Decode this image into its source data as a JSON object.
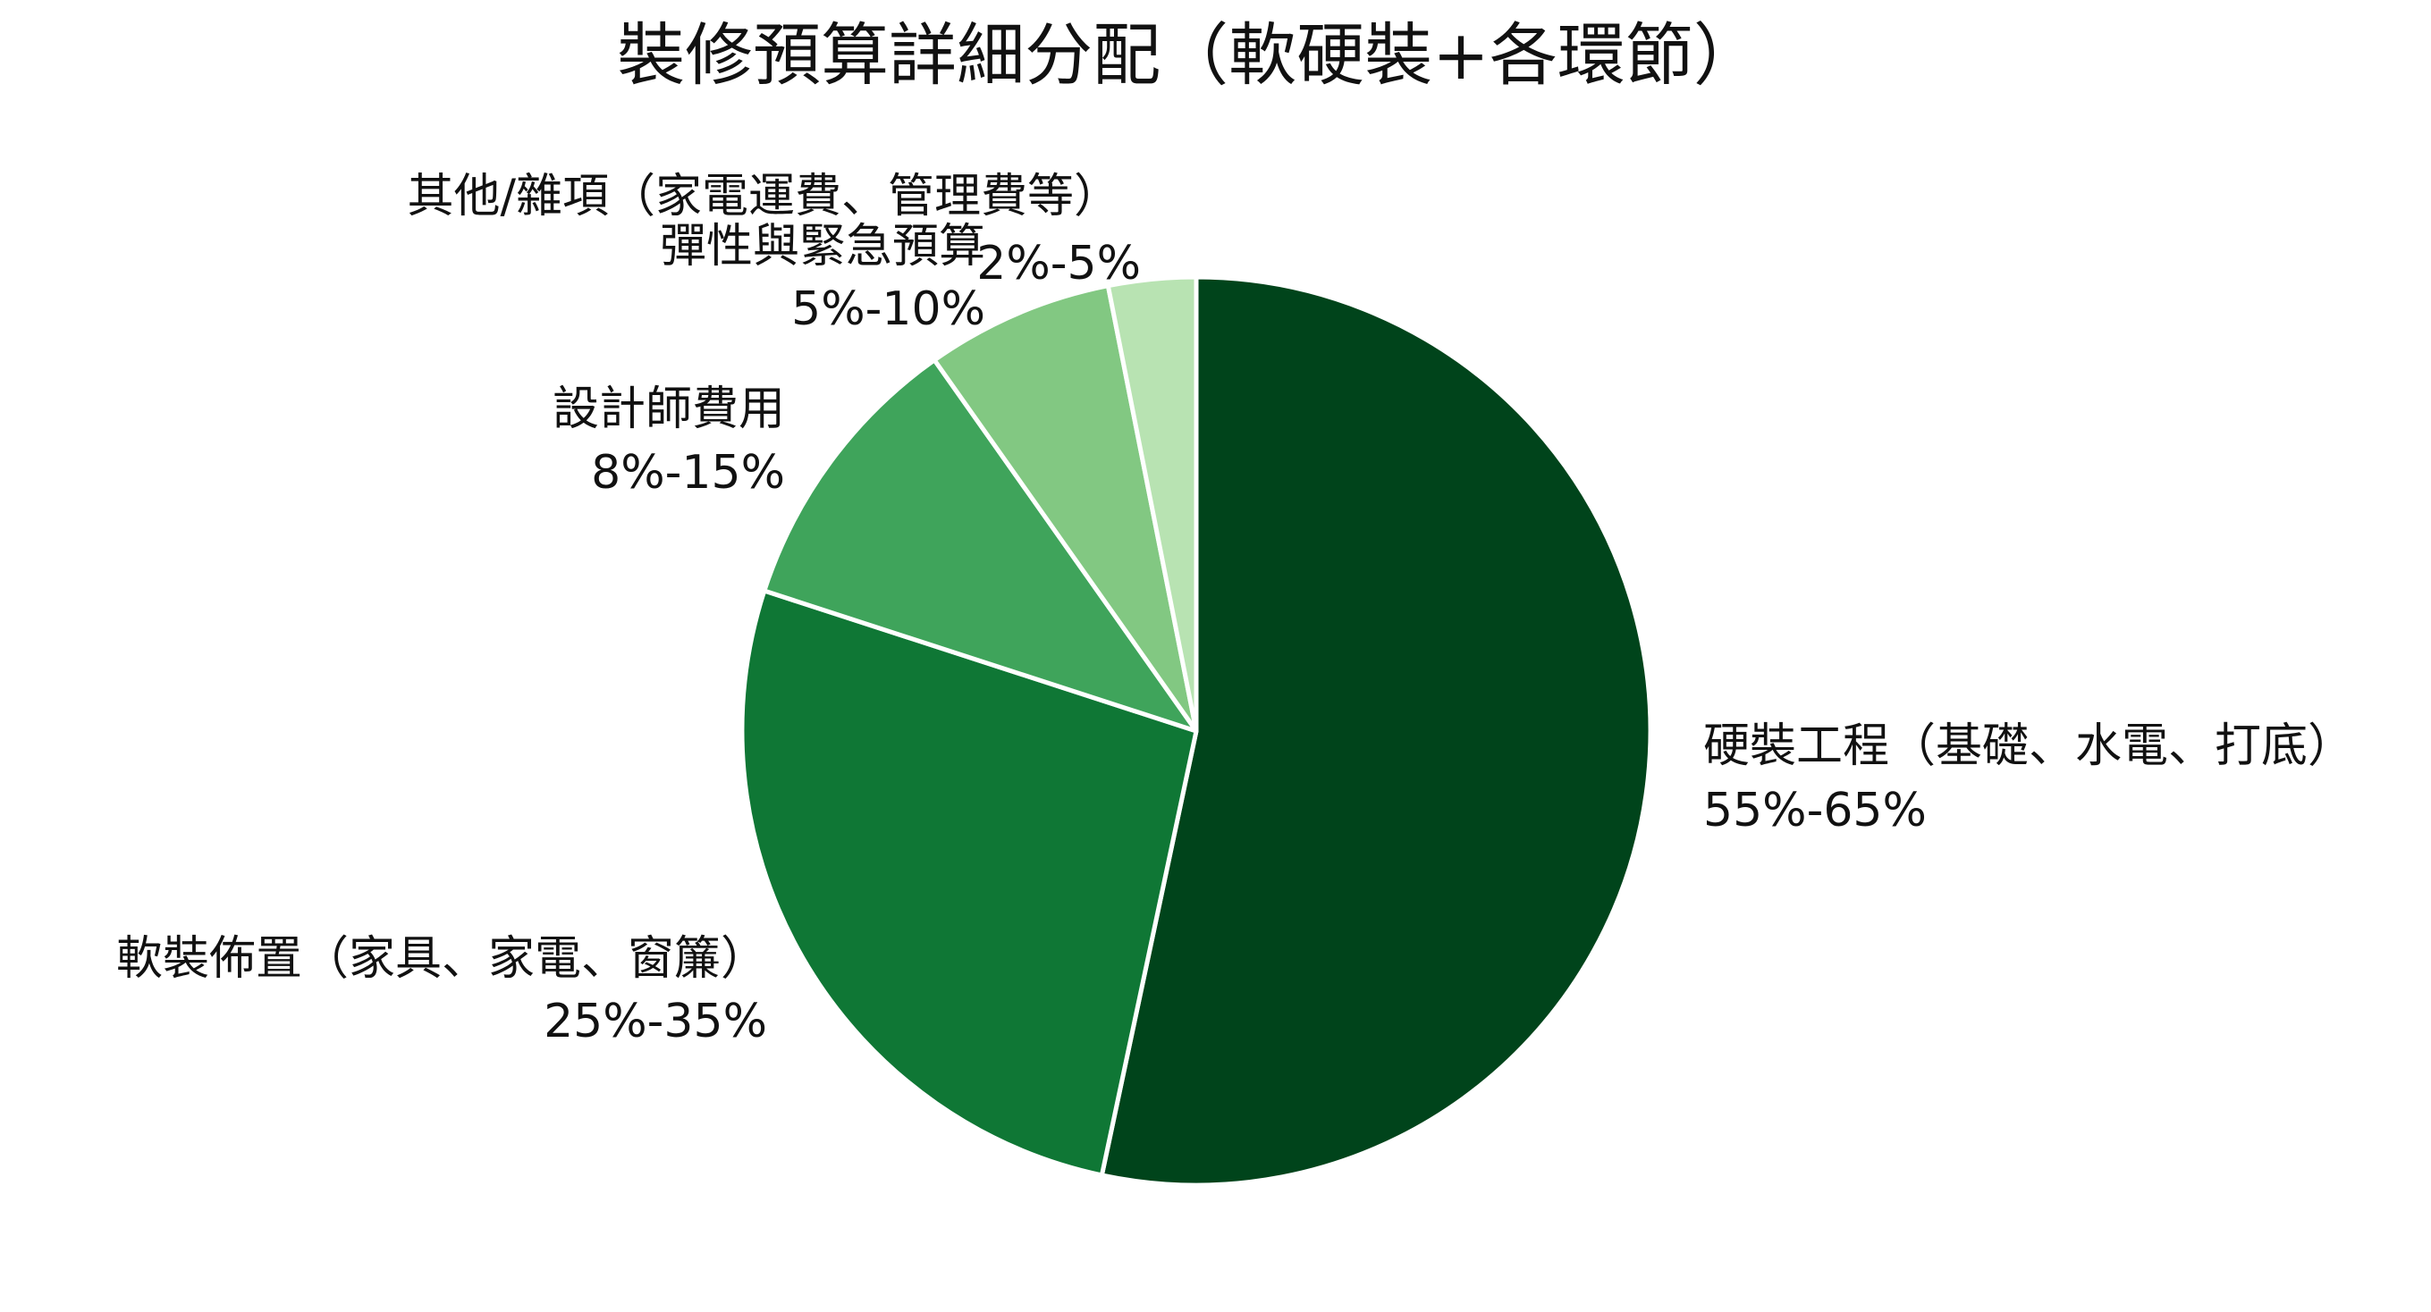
{
  "chart_data": {
    "type": "pie",
    "title": "裝修預算詳細分配（軟硬裝+各環節）",
    "slices": [
      {
        "label": "硬裝工程（基礎、水電、打底）",
        "range": "55%-65%",
        "value": 60,
        "color": "#00441b"
      },
      {
        "label": "軟裝佈置（家具、家電、窗簾）",
        "range": "25%-35%",
        "value": 30,
        "color": "#0f7735"
      },
      {
        "label": "設計師費用",
        "range": "8%-15%",
        "value": 11.5,
        "color": "#3fa45b"
      },
      {
        "label": "彈性與緊急預算",
        "range": "5%-10%",
        "value": 7.5,
        "color": "#82c882"
      },
      {
        "label": "其他/雜項（家電運費、管理費等）",
        "range": "2%-5%",
        "value": 3.5,
        "color": "#b8e3b2"
      }
    ],
    "start_angle": "12 o'clock",
    "direction": "clockwise",
    "legend": "none"
  }
}
